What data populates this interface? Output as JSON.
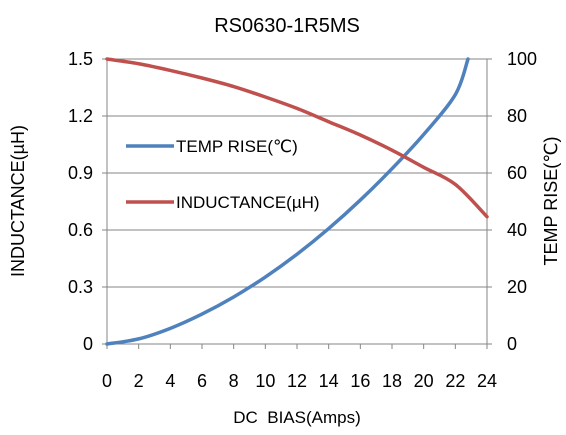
{
  "chart_data": {
    "type": "line",
    "title": "RS0630-1R5MS",
    "xlabel": "DC  BIAS(Amps)",
    "ylabel_left": "INDUCTANCE(µH)",
    "ylabel_right": "TEMP RISE(℃)",
    "xlim": [
      0,
      24
    ],
    "ylim_left": [
      0,
      1.5
    ],
    "ylim_right": [
      0,
      100
    ],
    "x_ticks": [
      "0",
      "2",
      "4",
      "6",
      "8",
      "10",
      "12",
      "14",
      "16",
      "18",
      "20",
      "22",
      "24"
    ],
    "y_left_ticks": [
      "0",
      "0.3",
      "0.6",
      "0.9",
      "1.2",
      "1.5"
    ],
    "y_right_ticks": [
      "0",
      "20",
      "40",
      "60",
      "80",
      "100"
    ],
    "grid": "horizontal",
    "legend_position": "inside-left",
    "series": [
      {
        "name": "TEMP RISE(℃)",
        "axis": "right",
        "color": "#4f81bd",
        "x": [
          0,
          2,
          4,
          6,
          8,
          10,
          12,
          14,
          16,
          18,
          20,
          22,
          22.8
        ],
        "y": [
          0,
          1.8,
          5.5,
          10.5,
          16.5,
          23.5,
          31.5,
          40.5,
          50.5,
          61.5,
          73.5,
          87.5,
          100
        ]
      },
      {
        "name": "INDUCTANCE(µH)",
        "axis": "left",
        "color": "#c0504d",
        "x": [
          0,
          2,
          4,
          6,
          8,
          10,
          12,
          14,
          16,
          18,
          20,
          22,
          24
        ],
        "y": [
          1.5,
          1.475,
          1.44,
          1.4,
          1.355,
          1.3,
          1.24,
          1.17,
          1.1,
          1.02,
          0.93,
          0.84,
          0.67
        ]
      }
    ]
  }
}
